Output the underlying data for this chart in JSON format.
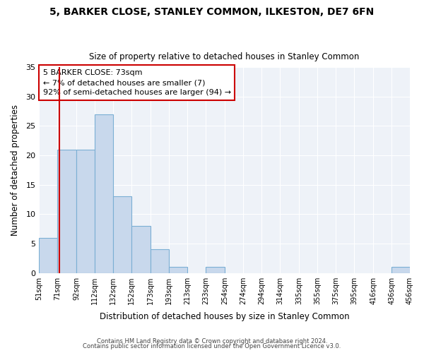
{
  "title1": "5, BARKER CLOSE, STANLEY COMMON, ILKESTON, DE7 6FN",
  "title2": "Size of property relative to detached houses in Stanley Common",
  "xlabel": "Distribution of detached houses by size in Stanley Common",
  "ylabel": "Number of detached properties",
  "bin_edges": [
    51,
    71,
    92,
    112,
    132,
    152,
    173,
    193,
    213,
    233,
    254,
    274,
    294,
    314,
    335,
    355,
    375,
    395,
    416,
    436,
    456
  ],
  "bin_labels": [
    "51sqm",
    "71sqm",
    "92sqm",
    "112sqm",
    "132sqm",
    "152sqm",
    "173sqm",
    "193sqm",
    "213sqm",
    "233sqm",
    "254sqm",
    "274sqm",
    "294sqm",
    "314sqm",
    "335sqm",
    "355sqm",
    "375sqm",
    "395sqm",
    "416sqm",
    "436sqm",
    "456sqm"
  ],
  "counts": [
    6,
    21,
    21,
    27,
    13,
    8,
    4,
    1,
    0,
    1,
    0,
    0,
    0,
    0,
    0,
    0,
    0,
    0,
    0,
    1
  ],
  "bar_color": "#c8d8ec",
  "bar_edge_color": "#7bafd4",
  "property_line_x": 73,
  "property_line_color": "#cc0000",
  "annotation_line1": "5 BARKER CLOSE: 73sqm",
  "annotation_line2": "← 7% of detached houses are smaller (7)",
  "annotation_line3": "92% of semi-detached houses are larger (94) →",
  "annotation_box_color": "#ffffff",
  "annotation_box_edge": "#cc0000",
  "ylim": [
    0,
    35
  ],
  "yticks": [
    0,
    5,
    10,
    15,
    20,
    25,
    30,
    35
  ],
  "footer1": "Contains HM Land Registry data © Crown copyright and database right 2024.",
  "footer2": "Contains public sector information licensed under the Open Government Licence v3.0.",
  "bg_color": "#ffffff",
  "plot_bg_color": "#eef2f8",
  "grid_color": "#ffffff"
}
